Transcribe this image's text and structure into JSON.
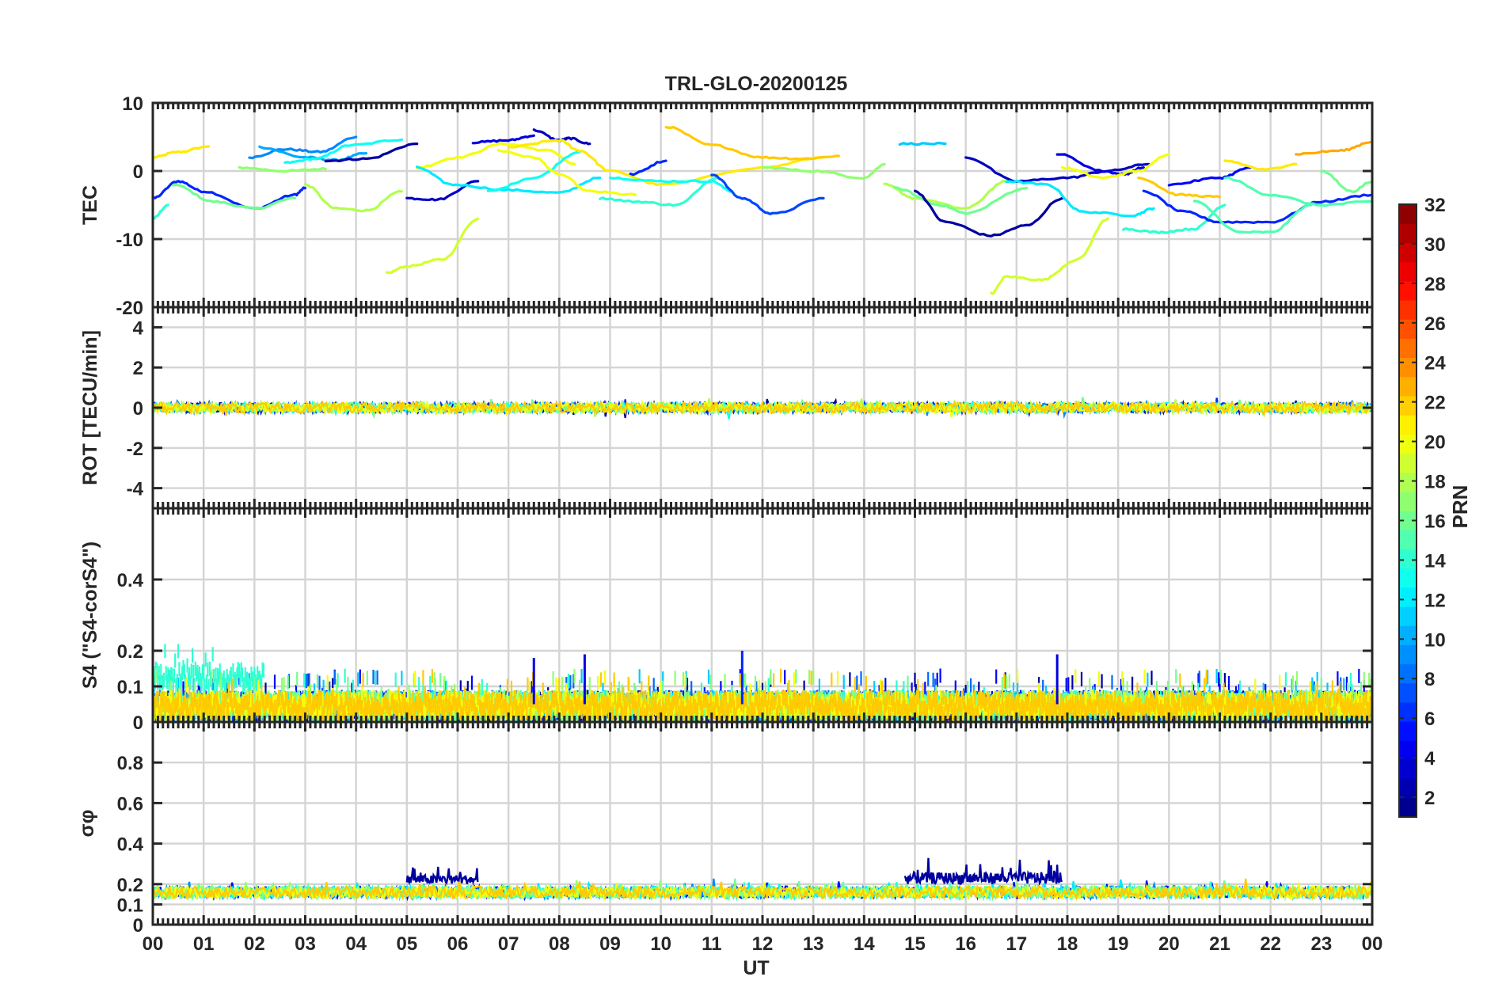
{
  "figure": {
    "title": "TRL-GLO-20200125",
    "xlabel": "UT",
    "x_tick_labels": [
      "00",
      "01",
      "02",
      "03",
      "04",
      "05",
      "06",
      "07",
      "08",
      "09",
      "10",
      "11",
      "12",
      "13",
      "14",
      "15",
      "16",
      "17",
      "18",
      "19",
      "20",
      "21",
      "22",
      "23",
      "00"
    ]
  },
  "colorbar": {
    "label": "PRN",
    "min": 1,
    "max": 32,
    "tick_labels": [
      "2",
      "4",
      "6",
      "8",
      "10",
      "12",
      "14",
      "16",
      "18",
      "20",
      "22",
      "24",
      "26",
      "28",
      "30",
      "32"
    ],
    "colormap": "jet"
  },
  "chart_data": [
    {
      "type": "line",
      "panel": "tec",
      "ylabel": "TEC",
      "xlim": [
        0,
        24
      ],
      "ylim": [
        -20,
        10
      ],
      "y_tick_labels": [
        "10",
        "0",
        "-10",
        "-20"
      ],
      "grid": true,
      "series": [
        {
          "prn": 21,
          "x": [
            0.0,
            0.5,
            1.1
          ],
          "y": [
            2.0,
            2.8,
            3.6
          ]
        },
        {
          "prn": 14,
          "x": [
            0.0,
            0.3
          ],
          "y": [
            -7.0,
            -5.0
          ]
        },
        {
          "prn": 6,
          "x": [
            0.0,
            0.5,
            1.0,
            2.0,
            2.8,
            3.0
          ],
          "y": [
            -4.0,
            -1.5,
            -3.0,
            -5.5,
            -3.5,
            -2.5
          ]
        },
        {
          "prn": 16,
          "x": [
            0.4,
            1.2,
            2.0,
            2.8
          ],
          "y": [
            -2.0,
            -4.5,
            -5.5,
            -4.0
          ]
        },
        {
          "prn": 17,
          "x": [
            1.7,
            2.6,
            3.4
          ],
          "y": [
            0.5,
            0.0,
            0.3
          ]
        },
        {
          "prn": 9,
          "x": [
            1.9,
            2.6,
            3.3,
            4.0
          ],
          "y": [
            2.0,
            3.2,
            2.8,
            5.0
          ]
        },
        {
          "prn": 10,
          "x": [
            2.1,
            3.0,
            3.6,
            4.2
          ],
          "y": [
            3.5,
            2.0,
            1.6,
            2.6
          ]
        },
        {
          "prn": 13,
          "x": [
            2.6,
            3.2,
            3.9,
            4.9
          ],
          "y": [
            1.2,
            1.8,
            3.8,
            4.6
          ]
        },
        {
          "prn": 2,
          "x": [
            3.4,
            4.2,
            5.2
          ],
          "y": [
            1.5,
            1.8,
            4.0
          ]
        },
        {
          "prn": 18,
          "x": [
            3.0,
            3.6,
            4.2,
            4.9
          ],
          "y": [
            -2.0,
            -5.5,
            -5.8,
            -3.0
          ]
        },
        {
          "prn": 19,
          "x": [
            4.6,
            5.0,
            5.7,
            6.4
          ],
          "y": [
            -15.0,
            -14.0,
            -13.0,
            -7.0
          ]
        },
        {
          "prn": 3,
          "x": [
            5.0,
            5.6,
            6.4
          ],
          "y": [
            -4.0,
            -4.2,
            -1.5
          ]
        },
        {
          "prn": 20,
          "x": [
            5.2,
            6.0,
            6.9,
            7.8,
            8.3
          ],
          "y": [
            0.5,
            2.0,
            4.0,
            3.0,
            1.0
          ]
        },
        {
          "prn": 12,
          "x": [
            5.2,
            5.9,
            7.0,
            8.0,
            8.8
          ],
          "y": [
            0.5,
            -2.0,
            -2.8,
            -3.2,
            -1.0
          ]
        },
        {
          "prn": 13,
          "x": [
            6.6,
            7.5,
            8.4
          ],
          "y": [
            -3.0,
            -1.0,
            2.8
          ]
        },
        {
          "prn": 4,
          "x": [
            6.3,
            7.0,
            7.5
          ],
          "y": [
            4.2,
            4.5,
            5.2
          ]
        },
        {
          "prn": 3,
          "x": [
            7.5,
            8.0,
            8.2,
            8.6
          ],
          "y": [
            6.0,
            4.5,
            4.8,
            4.0
          ]
        },
        {
          "prn": 20,
          "x": [
            6.8,
            7.5,
            8.0,
            8.6,
            9.5
          ],
          "y": [
            3.0,
            2.0,
            -0.5,
            -3.0,
            -3.5
          ]
        },
        {
          "prn": 21,
          "x": [
            7.0,
            8.0,
            8.4,
            9.0,
            10.0,
            12.0,
            13.2
          ],
          "y": [
            3.5,
            4.5,
            3.0,
            0.0,
            -2.0,
            0.5,
            2.0
          ]
        },
        {
          "prn": 22,
          "x": [
            10.1,
            11.0,
            12.0,
            12.8,
            13.5
          ],
          "y": [
            6.5,
            3.8,
            2.0,
            1.8,
            2.2
          ]
        },
        {
          "prn": 6,
          "x": [
            9.4,
            10.1
          ],
          "y": [
            -0.5,
            1.5
          ]
        },
        {
          "prn": 14,
          "x": [
            8.8,
            9.5,
            10.3,
            11.1
          ],
          "y": [
            -4.0,
            -4.5,
            -5.0,
            -1.0
          ]
        },
        {
          "prn": 13,
          "x": [
            9.0,
            10.0,
            11.0,
            11.4
          ],
          "y": [
            -1.0,
            -1.5,
            -1.5,
            -3.0
          ]
        },
        {
          "prn": 7,
          "x": [
            11.0,
            11.6,
            12.2,
            13.2
          ],
          "y": [
            -0.5,
            -4.0,
            -6.3,
            -4.0
          ]
        },
        {
          "prn": 17,
          "x": [
            12.0,
            13.0,
            14.0,
            14.4
          ],
          "y": [
            0.5,
            0.0,
            -1.0,
            1.0
          ]
        },
        {
          "prn": 11,
          "x": [
            14.7,
            15.6
          ],
          "y": [
            4.0,
            4.0
          ]
        },
        {
          "prn": 18,
          "x": [
            14.4,
            15.0,
            16.0,
            16.8
          ],
          "y": [
            -2.0,
            -4.0,
            -5.5,
            -1.5
          ]
        },
        {
          "prn": 16,
          "x": [
            14.6,
            15.5,
            16.0,
            17.2
          ],
          "y": [
            -2.5,
            -5.0,
            -6.2,
            -2.5
          ]
        },
        {
          "prn": 2,
          "x": [
            15.0,
            15.6,
            16.5,
            17.2,
            17.9
          ],
          "y": [
            -3.0,
            -7.5,
            -9.5,
            -8.0,
            -4.0
          ]
        },
        {
          "prn": 19,
          "x": [
            16.5,
            16.8,
            17.5,
            18.2,
            18.8
          ],
          "y": [
            -18.0,
            -15.5,
            -16.0,
            -13.0,
            -7.0
          ]
        },
        {
          "prn": 3,
          "x": [
            16.0,
            17.0,
            18.0,
            18.8,
            19.6
          ],
          "y": [
            2.0,
            -1.5,
            -1.0,
            0.0,
            1.0
          ]
        },
        {
          "prn": 12,
          "x": [
            16.8,
            17.6,
            18.3,
            19.3,
            19.7
          ],
          "y": [
            -1.5,
            -2.0,
            -6.0,
            -6.5,
            -5.5
          ]
        },
        {
          "prn": 4,
          "x": [
            17.8,
            18.7,
            19.1,
            19.5
          ],
          "y": [
            2.5,
            0.0,
            -0.5,
            0.5
          ]
        },
        {
          "prn": 20,
          "x": [
            17.9,
            18.7,
            19.4,
            20.0
          ],
          "y": [
            0.5,
            -1.0,
            0.0,
            2.5
          ]
        },
        {
          "prn": 14,
          "x": [
            19.1,
            19.8,
            20.5,
            21.1
          ],
          "y": [
            -8.5,
            -9.0,
            -8.5,
            -5.0
          ]
        },
        {
          "prn": 22,
          "x": [
            19.4,
            20.2,
            21.0
          ],
          "y": [
            -1.0,
            -3.5,
            -3.8
          ]
        },
        {
          "prn": 6,
          "x": [
            19.5,
            20.3,
            21.0,
            22.0,
            23.0,
            24.0
          ],
          "y": [
            -3.0,
            -6.0,
            -7.5,
            -7.5,
            -4.5,
            -3.5
          ]
        },
        {
          "prn": 5,
          "x": [
            20.0,
            21.0,
            21.6
          ],
          "y": [
            -2.0,
            -1.0,
            0.5
          ]
        },
        {
          "prn": 15,
          "x": [
            20.5,
            21.4,
            22.0,
            22.8
          ],
          "y": [
            -4.5,
            -9.0,
            -9.0,
            -5.0
          ]
        },
        {
          "prn": 15,
          "x": [
            21.1,
            22.0,
            23.0,
            24.0
          ],
          "y": [
            -1.0,
            -3.5,
            -5.0,
            -4.5
          ]
        },
        {
          "prn": 21,
          "x": [
            21.1,
            21.9,
            22.5
          ],
          "y": [
            1.5,
            0.2,
            1.0
          ]
        },
        {
          "prn": 23,
          "x": [
            22.5,
            23.4,
            24.0
          ],
          "y": [
            2.5,
            3.0,
            4.3
          ]
        },
        {
          "prn": 16,
          "x": [
            23.0,
            23.6,
            24.0
          ],
          "y": [
            0.0,
            -3.0,
            -1.5
          ]
        }
      ]
    },
    {
      "type": "line",
      "panel": "rot",
      "ylabel": "ROT [TECU/min]",
      "xlim": [
        0,
        24
      ],
      "ylim": [
        -5,
        5
      ],
      "y_tick_labels": [
        "4",
        "2",
        "0",
        "-2",
        "-4"
      ],
      "grid": true,
      "description_values": {
        "typical_range": [
          -0.5,
          0.5
        ],
        "baseline": 0
      }
    },
    {
      "type": "scatter",
      "panel": "s4",
      "ylabel": "S4 (\"S4-corS4\")",
      "xlim": [
        0,
        24
      ],
      "ylim": [
        0,
        0.6
      ],
      "y_tick_labels": [
        "0",
        "0.1",
        "0.2",
        "0.4"
      ],
      "grid": true,
      "description_values": {
        "typical_range": [
          0.0,
          0.12
        ],
        "max_peaks": [
          {
            "x": 11.6,
            "y": 0.2
          },
          {
            "x": 17.8,
            "y": 0.19
          },
          {
            "x": 7.5,
            "y": 0.18
          },
          {
            "x": 8.5,
            "y": 0.19
          }
        ]
      }
    },
    {
      "type": "scatter",
      "panel": "sigma_phi",
      "ylabel": "σφ",
      "xlim": [
        0,
        24
      ],
      "ylim": [
        0,
        1.0
      ],
      "y_tick_labels": [
        "0",
        "0.1",
        "0.2",
        "0.4",
        "0.6",
        "0.8"
      ],
      "grid": true,
      "description_values": {
        "typical_range": [
          0.12,
          0.2
        ],
        "enhanced_intervals": [
          {
            "x": [
              5.0,
              6.4
            ],
            "y_range": [
              0.2,
              0.3
            ],
            "prn": 2
          },
          {
            "x": [
              14.8,
              17.9
            ],
            "y_range": [
              0.2,
              0.33
            ],
            "prn": 2
          }
        ]
      }
    }
  ]
}
